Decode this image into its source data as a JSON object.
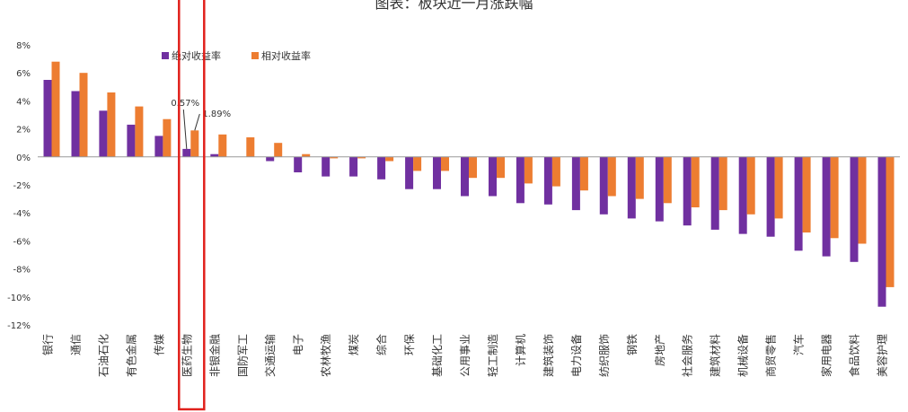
{
  "chart_data": {
    "type": "bar",
    "title": "图表：板块近一月涨跌幅",
    "xlabel": "",
    "ylabel": "",
    "ylim": [
      -12,
      8
    ],
    "ytick_labels": [
      "8%",
      "6%",
      "4%",
      "2%",
      "0%",
      "-2%",
      "-4%",
      "-6%",
      "-8%",
      "-10%",
      "-12%"
    ],
    "ytick_values": [
      8,
      6,
      4,
      2,
      0,
      -2,
      -4,
      -6,
      -8,
      -10,
      -12
    ],
    "categories": [
      "银行",
      "通信",
      "石油石化",
      "有色金属",
      "传媒",
      "医药生物",
      "非银金融",
      "国防军工",
      "交通运输",
      "电子",
      "农林牧渔",
      "煤炭",
      "综合",
      "环保",
      "基础化工",
      "公用事业",
      "轻工制造",
      "计算机",
      "建筑装饰",
      "电力设备",
      "纺织服饰",
      "钢铁",
      "房地产",
      "社会服务",
      "建筑材料",
      "机械设备",
      "商贸零售",
      "汽车",
      "家用电器",
      "食品饮料",
      "美容护理"
    ],
    "series": [
      {
        "name": "绝对收益率",
        "color": "#7030a0",
        "values": [
          5.5,
          4.7,
          3.3,
          2.3,
          1.5,
          0.57,
          0.2,
          0.0,
          -0.3,
          -1.1,
          -1.4,
          -1.4,
          -1.6,
          -2.3,
          -2.3,
          -2.8,
          -2.8,
          -3.3,
          -3.4,
          -3.8,
          -4.1,
          -4.4,
          -4.6,
          -4.9,
          -5.2,
          -5.5,
          -5.7,
          -6.7,
          -7.1,
          -7.5,
          -10.7
        ]
      },
      {
        "name": "相对收益率",
        "color": "#ed7d31",
        "values": [
          6.8,
          6.0,
          4.6,
          3.6,
          2.7,
          1.89,
          1.6,
          1.4,
          1.0,
          0.2,
          -0.1,
          -0.1,
          -0.3,
          -1.0,
          -1.0,
          -1.5,
          -1.5,
          -1.9,
          -2.1,
          -2.4,
          -2.8,
          -3.0,
          -3.3,
          -3.6,
          -3.8,
          -4.1,
          -4.4,
          -5.4,
          -5.8,
          -6.2,
          -9.3
        ]
      }
    ],
    "annotations": [
      {
        "text": "0.57%",
        "category": "医药生物",
        "series": "绝对收益率"
      },
      {
        "text": "1.89%",
        "category": "医药生物",
        "series": "相对收益率"
      }
    ],
    "highlight_category": "医药生物",
    "legend_position": "top-left"
  },
  "colors": {
    "highlight_box": "#e0201b",
    "axis": "#999999"
  }
}
